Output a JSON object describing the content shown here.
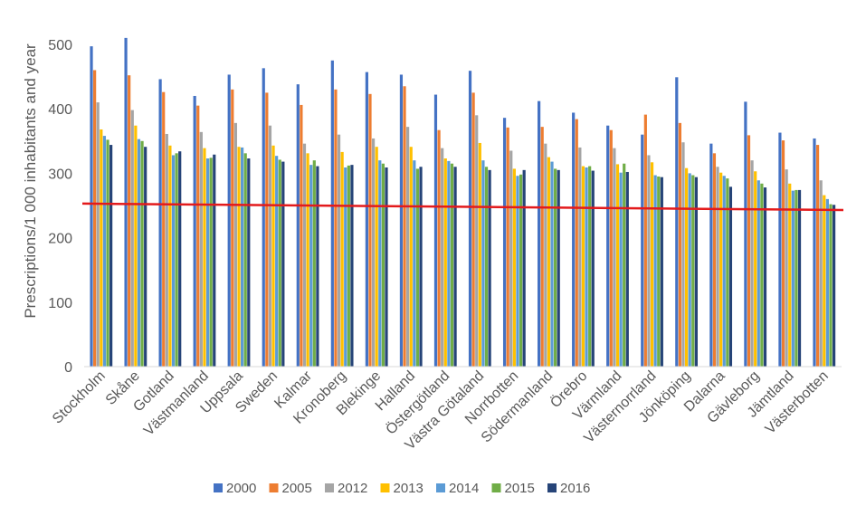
{
  "chart_data": {
    "type": "bar",
    "ylabel": "Prescriptions/1 000 inhabitants and year",
    "xlabel": "",
    "ylim": [
      0,
      500
    ],
    "yticks": [
      0,
      100,
      200,
      300,
      400,
      500
    ],
    "grid": false,
    "legend_position": "bottom",
    "categories": [
      "Stockholm",
      "Skåne",
      "Gotland",
      "Västmanland",
      "Uppsala",
      "Sweden",
      "Kalmar",
      "Kronoberg",
      "Blekinge",
      "Halland",
      "Östergötland",
      "Västra Götaland",
      "Norrbotten",
      "Södermanland",
      "Örebro",
      "Värmland",
      "Västernorrland",
      "Jönköping",
      "Dalarna",
      "Gävleborg",
      "Jämtland",
      "Västerbotten"
    ],
    "series": [
      {
        "name": "2000",
        "color": "#4472C4",
        "values": [
          497,
          510,
          446,
          420,
          453,
          463,
          438,
          475,
          457,
          453,
          422,
          459,
          386,
          412,
          394,
          374,
          360,
          449,
          346,
          411,
          363,
          354
        ]
      },
      {
        "name": "2005",
        "color": "#ED7D31",
        "values": [
          460,
          452,
          426,
          405,
          430,
          425,
          406,
          430,
          423,
          435,
          367,
          425,
          371,
          372,
          384,
          367,
          391,
          378,
          331,
          359,
          351,
          344
        ]
      },
      {
        "name": "2012",
        "color": "#A5A5A5",
        "values": [
          410,
          398,
          361,
          364,
          378,
          374,
          346,
          360,
          354,
          372,
          339,
          390,
          335,
          346,
          340,
          339,
          328,
          348,
          310,
          320,
          306,
          289
        ]
      },
      {
        "name": "2013",
        "color": "#FFC000",
        "values": [
          368,
          374,
          343,
          339,
          341,
          343,
          331,
          333,
          341,
          341,
          323,
          347,
          307,
          325,
          311,
          314,
          317,
          308,
          301,
          303,
          284,
          266
        ]
      },
      {
        "name": "2014",
        "color": "#5B9BD5",
        "values": [
          358,
          353,
          328,
          323,
          340,
          327,
          313,
          309,
          320,
          320,
          319,
          320,
          296,
          318,
          309,
          301,
          297,
          300,
          296,
          289,
          273,
          260
        ]
      },
      {
        "name": "2015",
        "color": "#70AD47",
        "values": [
          352,
          350,
          331,
          324,
          331,
          321,
          320,
          312,
          315,
          307,
          315,
          310,
          298,
          307,
          311,
          315,
          295,
          297,
          292,
          284,
          274,
          252
        ]
      },
      {
        "name": "2016",
        "color": "#264478",
        "values": [
          344,
          341,
          334,
          329,
          323,
          318,
          311,
          313,
          309,
          310,
          310,
          305,
          305,
          305,
          304,
          302,
          294,
          294,
          279,
          278,
          274,
          251
        ]
      }
    ],
    "reference_line": {
      "color": "#E31A1C",
      "start_value": 253,
      "end_value": 243
    }
  }
}
